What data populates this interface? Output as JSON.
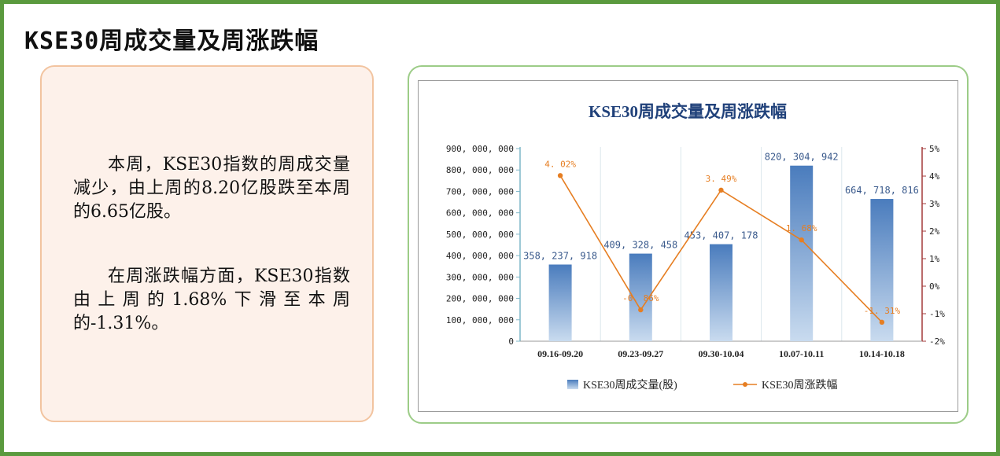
{
  "page": {
    "title": "KSE30周成交量及周涨跌幅",
    "paragraphs": [
      "本周，KSE30指数的周成交量减少，由上周的8.20亿股跌至本周的6.65亿股。",
      "在周涨跌幅方面，KSE30指数由上周的1.68%下滑至本周的-1.31%。"
    ]
  },
  "colors": {
    "frame_border": "#5a9a3e",
    "text_card_border": "#f2c4a0",
    "text_card_bg": "#fdf1ea",
    "chart_card_border": "#9ccc87",
    "bar_top": "#4a7cbd",
    "bar_bottom": "#c9dbef",
    "line": "#e67e22",
    "title": "#20417a",
    "left_axis": "#7fb7c9",
    "right_axis": "#a33a3a"
  },
  "chart_data": {
    "type": "bar",
    "title": "KSE30周成交量及周涨跌幅",
    "categories": [
      "09.16-09.20",
      "09.23-09.27",
      "09.30-10.04",
      "10.07-10.11",
      "10.14-10.18"
    ],
    "series": [
      {
        "name": "KSE30周成交量(股)",
        "type": "bar",
        "axis": "left",
        "values": [
          358237918,
          409328458,
          453407178,
          820304942,
          664718816
        ],
        "labels": [
          "358, 237, 918",
          "409, 328, 458",
          "453, 407, 178",
          "820, 304, 942",
          "664, 718, 816"
        ]
      },
      {
        "name": "KSE30周涨跌幅",
        "type": "line",
        "axis": "right",
        "values": [
          4.02,
          -0.86,
          3.49,
          1.68,
          -1.31
        ],
        "labels": [
          "4. 02%",
          "-0. 86%",
          "3. 49%",
          "1. 68%",
          "-1. 31%"
        ]
      }
    ],
    "left_axis": {
      "ylim": [
        0,
        900000000
      ],
      "ticks": [
        0,
        100000000,
        200000000,
        300000000,
        400000000,
        500000000,
        600000000,
        700000000,
        800000000,
        900000000
      ],
      "tick_labels": [
        "0",
        "100, 000, 000",
        "200, 000, 000",
        "300, 000, 000",
        "400, 000, 000",
        "500, 000, 000",
        "600, 000, 000",
        "700, 000, 000",
        "800, 000, 000",
        "900, 000, 000"
      ]
    },
    "right_axis": {
      "ylim": [
        -2,
        5
      ],
      "ticks": [
        -2,
        -1,
        0,
        1,
        2,
        3,
        4,
        5
      ],
      "tick_labels": [
        "-2%",
        "-1%",
        "0%",
        "1%",
        "2%",
        "3%",
        "4%",
        "5%"
      ]
    },
    "grid": "vertical category separators",
    "legend_position": "bottom"
  }
}
